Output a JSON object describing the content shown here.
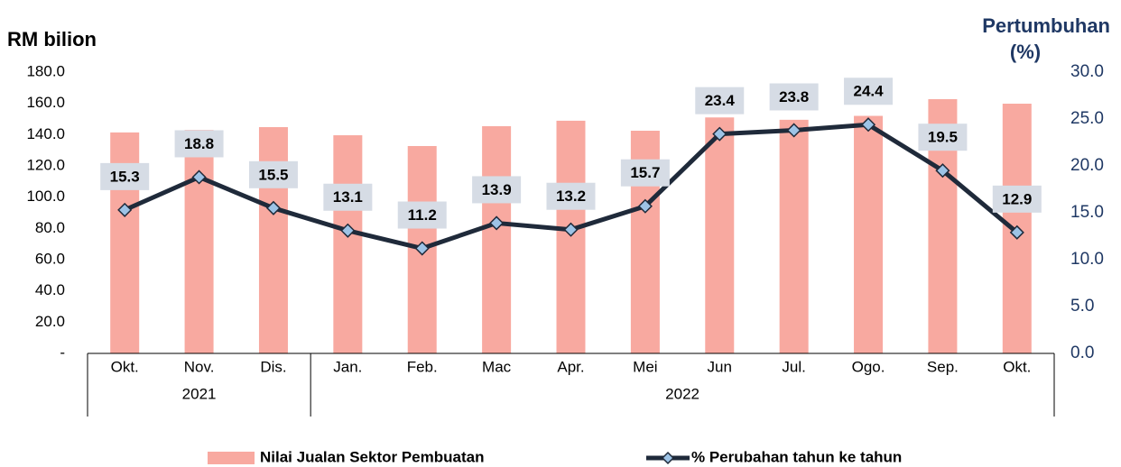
{
  "chart_data": {
    "type": "combo",
    "title": "RM bilion",
    "y2_title": [
      "Pertumbuhan",
      "(%)"
    ],
    "categories": [
      "Okt.",
      "Nov.",
      "Dis.",
      "Jan.",
      "Feb.",
      "Mac",
      "Apr.",
      "Mei",
      "Jun",
      "Jul.",
      "Ogo.",
      "Sep.",
      "Okt."
    ],
    "category_groups": [
      "2021",
      "2021",
      "2021",
      "2022",
      "2022",
      "2022",
      "2022",
      "2022",
      "2022",
      "2022",
      "2022",
      "2022",
      "2022"
    ],
    "series": [
      {
        "name": "Nilai Jualan Sektor Pembuatan",
        "type": "bar",
        "color": "#f8a9a0",
        "values": [
          141.4,
          143,
          144.8,
          139.6,
          132.7,
          145.4,
          148.9,
          142.5,
          151,
          149.5,
          152,
          162.7,
          159.8
        ]
      },
      {
        "name": "% Perubahan tahun ke tahun",
        "type": "line",
        "axis": "y2",
        "color": "#1f2a3a",
        "marker_color": "#9dc3e6",
        "values": [
          15.3,
          18.8,
          15.5,
          13.1,
          11.2,
          13.9,
          13.2,
          15.7,
          23.4,
          23.8,
          24.4,
          19.5,
          12.9
        ]
      }
    ],
    "ylim": [
      0,
      180
    ],
    "yticks": [
      {
        "value": 0,
        "label": "-"
      },
      {
        "value": 20,
        "label": "20.0"
      },
      {
        "value": 40,
        "label": "40.0"
      },
      {
        "value": 60,
        "label": "60.0"
      },
      {
        "value": 80,
        "label": "80.0"
      },
      {
        "value": 100,
        "label": "100.0"
      },
      {
        "value": 120,
        "label": "120.0"
      },
      {
        "value": 140,
        "label": "140.0"
      },
      {
        "value": 160,
        "label": "160.0"
      },
      {
        "value": 180,
        "label": "180.0"
      }
    ],
    "y2lim": [
      0,
      30
    ],
    "y2ticks": [
      {
        "value": 0,
        "label": "0.0"
      },
      {
        "value": 5,
        "label": "5.0"
      },
      {
        "value": 10,
        "label": "10.0"
      },
      {
        "value": 15,
        "label": "15.0"
      },
      {
        "value": 20,
        "label": "20.0"
      },
      {
        "value": 25,
        "label": "25.0"
      },
      {
        "value": 30,
        "label": "30.0"
      }
    ],
    "legend": "bottom"
  }
}
